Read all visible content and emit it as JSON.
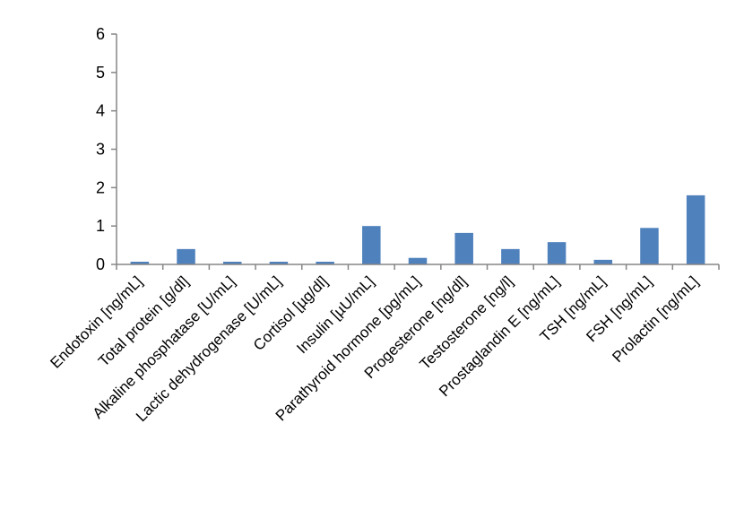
{
  "chart_data": {
    "type": "bar",
    "title": "",
    "xlabel": "",
    "ylabel": "",
    "ylim": [
      0,
      6
    ],
    "yticks": [
      0,
      1,
      2,
      3,
      4,
      5,
      6
    ],
    "grid": false,
    "legend": "none",
    "bar_color": "#4F81BD",
    "categories": [
      "Endotoxin [ng/mL]",
      "Total protein [g/dl]",
      "Alkaline phosphatase [U/mL]",
      "Lactic dehydrogenase [U/mL]",
      "Cortisol [µg/dl]",
      "Insulin [µU/mL]",
      "Parathyroid hormone [pg/mL]",
      "Progesterone [ng/dl]",
      "Testosterone [ng/l]",
      "Prostaglandin E [ng/mL]",
      "TSH [ng/mL]",
      "FSH [ng/mL]",
      "Prolactin [ng/mL]"
    ],
    "values": [
      0.07,
      0.4,
      0.07,
      0.07,
      0.07,
      1.0,
      0.17,
      0.82,
      0.4,
      0.58,
      0.12,
      0.95,
      1.8
    ]
  }
}
